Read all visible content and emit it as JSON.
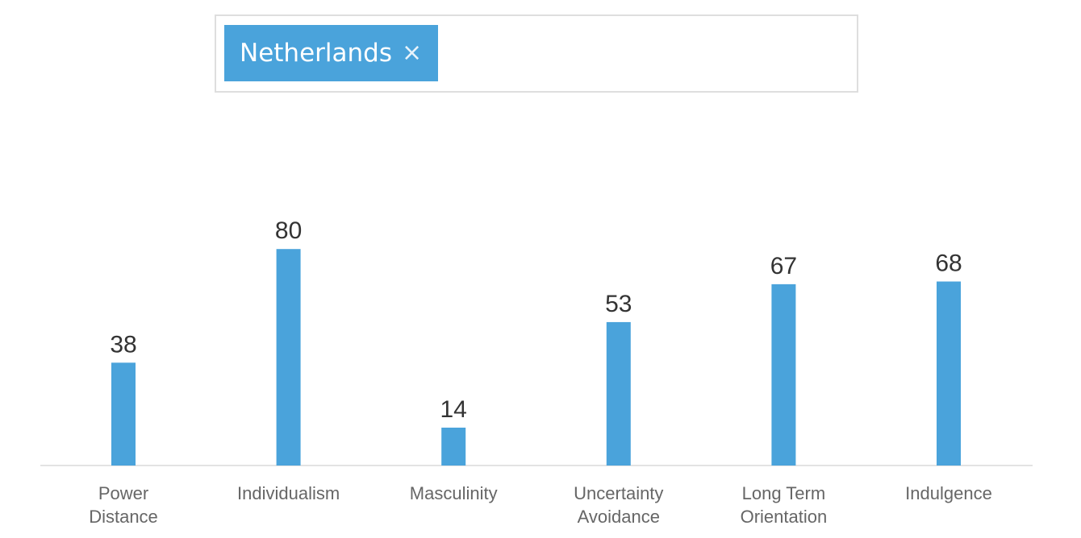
{
  "country_selector": {
    "selected_tag": "Netherlands",
    "remove_glyph": "×",
    "tag_color": "#4aa3db",
    "remove_icon": "close-icon"
  },
  "chart_data": {
    "type": "bar",
    "title": "",
    "xlabel": "",
    "ylabel": "",
    "ylim": [
      0,
      100
    ],
    "grid": false,
    "bar_color": "#4aa3db",
    "categories": [
      [
        "Power",
        "Distance"
      ],
      [
        "Individualism"
      ],
      [
        "Masculinity"
      ],
      [
        "Uncertainty",
        "Avoidance"
      ],
      [
        "Long Term",
        "Orientation"
      ],
      [
        "Indulgence"
      ]
    ],
    "values": [
      38,
      80,
      14,
      53,
      67,
      68
    ]
  }
}
